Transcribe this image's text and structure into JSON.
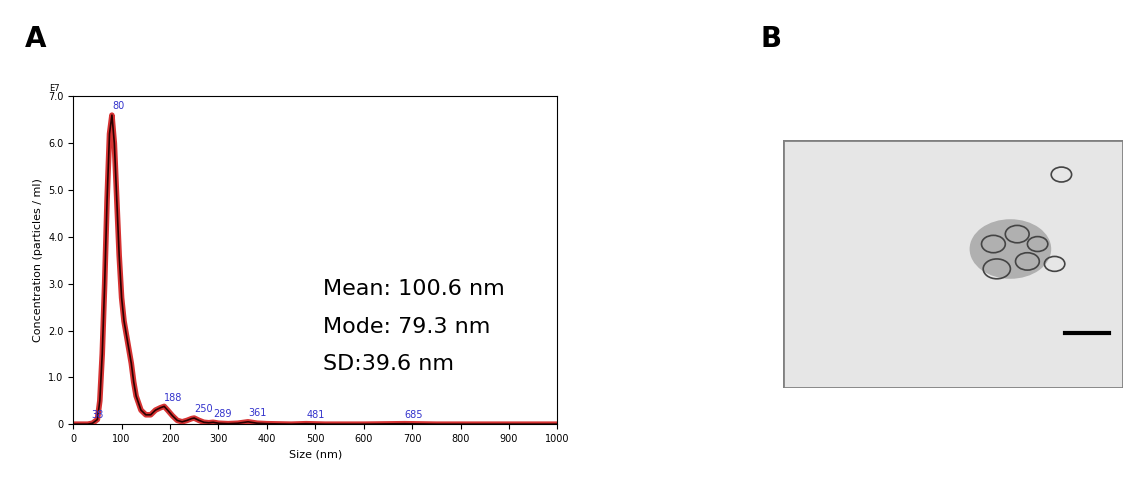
{
  "panel_labels": [
    "A",
    "B"
  ],
  "chart_data": {
    "type": "line",
    "x_label": "Size (nm)",
    "y_label": "Concentration (particles / ml)",
    "y_multiplier_label": "E7",
    "x": [
      0,
      30,
      40,
      50,
      55,
      60,
      65,
      70,
      75,
      80,
      85,
      90,
      95,
      100,
      105,
      110,
      115,
      120,
      125,
      130,
      140,
      150,
      160,
      170,
      180,
      188,
      195,
      205,
      215,
      225,
      235,
      245,
      250,
      260,
      270,
      280,
      289,
      300,
      320,
      340,
      361,
      380,
      400,
      450,
      481,
      520,
      600,
      685,
      750,
      850,
      1000
    ],
    "values": [
      0,
      0,
      0.02,
      0.1,
      0.5,
      1.5,
      3.0,
      4.8,
      6.2,
      6.6,
      6.0,
      4.8,
      3.6,
      2.7,
      2.2,
      1.9,
      1.6,
      1.3,
      0.9,
      0.6,
      0.3,
      0.2,
      0.2,
      0.3,
      0.35,
      0.38,
      0.3,
      0.18,
      0.08,
      0.05,
      0.08,
      0.12,
      0.13,
      0.08,
      0.04,
      0.03,
      0.04,
      0.02,
      0.01,
      0.02,
      0.05,
      0.02,
      0.01,
      0,
      0.01,
      0,
      0,
      0.01,
      0,
      0,
      0
    ],
    "color": "#cc0000",
    "peaks": {
      "x": [
        38,
        80,
        188,
        250,
        289,
        361,
        481,
        685
      ],
      "values": [
        0,
        6.6,
        0.38,
        0.13,
        0.04,
        0.05,
        0.01,
        0.01
      ],
      "color": "#3333cc"
    },
    "annotations": [
      "Mean: 100.6 nm",
      "Mode: 79.3 nm",
      "SD:39.6 nm"
    ],
    "xlim": [
      0,
      1000
    ],
    "xticks": [
      0,
      100,
      200,
      300,
      400,
      500,
      600,
      700,
      800,
      900,
      1000
    ],
    "ylim": [
      0,
      7.0
    ],
    "yticks": [
      0,
      1.0,
      2.0,
      3.0,
      4.0,
      5.0,
      6.0,
      7.0
    ],
    "grid": false
  }
}
